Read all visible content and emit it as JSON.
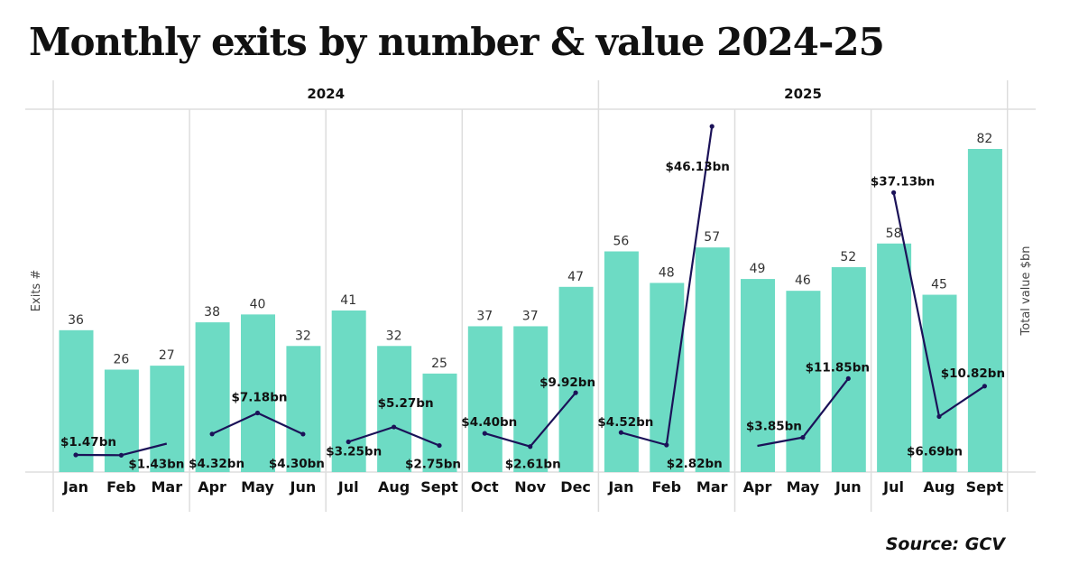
{
  "title": "Monthly exits by number & value 2024-25",
  "source": "Source: GCV",
  "colors": {
    "bar": "#6ddbc4",
    "line": "#1b1258",
    "grid": "#dddddd",
    "text": "#111111"
  },
  "chart_data": {
    "type": "bar+line",
    "title": "Monthly exits by number & value 2024-25",
    "ylabel": "Exits #",
    "y2label": "Total value $bn",
    "years": [
      {
        "label": "2024",
        "months": [
          "Jan",
          "Feb",
          "Mar",
          "Apr",
          "May",
          "Jun",
          "Jul",
          "Aug",
          "Sept",
          "Oct",
          "Nov",
          "Dec"
        ]
      },
      {
        "label": "2025",
        "months": [
          "Jan",
          "Feb",
          "Mar",
          "Apr",
          "May",
          "Jun",
          "Jul",
          "Aug",
          "Sept"
        ]
      }
    ],
    "categories": [
      "Jan",
      "Feb",
      "Mar",
      "Apr",
      "May",
      "Jun",
      "Jul",
      "Aug",
      "Sept",
      "Oct",
      "Nov",
      "Dec",
      "Jan",
      "Feb",
      "Mar",
      "Apr",
      "May",
      "Jun",
      "Jul",
      "Aug",
      "Sept"
    ],
    "ylim": [
      0,
      82
    ],
    "y2lim": [
      0,
      46.13
    ],
    "series": [
      {
        "name": "Exits #",
        "type": "bar",
        "values": [
          36,
          26,
          27,
          38,
          40,
          32,
          41,
          32,
          25,
          37,
          37,
          47,
          56,
          48,
          57,
          49,
          46,
          52,
          58,
          45,
          82
        ],
        "labels": [
          "36",
          "26",
          "27",
          "38",
          "40",
          "32",
          "41",
          "32",
          "25",
          "37",
          "37",
          "47",
          "56",
          "48",
          "57",
          "49",
          "46",
          "52",
          "58",
          "45",
          "82"
        ]
      },
      {
        "name": "Total value $bn",
        "type": "line",
        "segmented_by": "quarter",
        "values": [
          1.47,
          1.43,
          3.0,
          4.32,
          7.18,
          4.3,
          3.25,
          5.27,
          2.75,
          4.4,
          2.61,
          9.92,
          4.52,
          2.82,
          46.13,
          2.7,
          3.85,
          11.85,
          37.13,
          6.69,
          10.82
        ],
        "labels": [
          "$1.47bn",
          "$1.43bn",
          null,
          "$4.32bn",
          "$7.18bn",
          "$4.30bn",
          "$3.25bn",
          "$5.27bn",
          "$2.75bn",
          "$4.40bn",
          "$2.61bn",
          "$9.92bn",
          "$4.52bn",
          "$2.82bn",
          "$46.13bn",
          null,
          "$3.85bn",
          "$11.85bn",
          "$37.13bn",
          "$6.69bn",
          "$10.82bn"
        ]
      }
    ],
    "grid": true,
    "legend": "none"
  }
}
